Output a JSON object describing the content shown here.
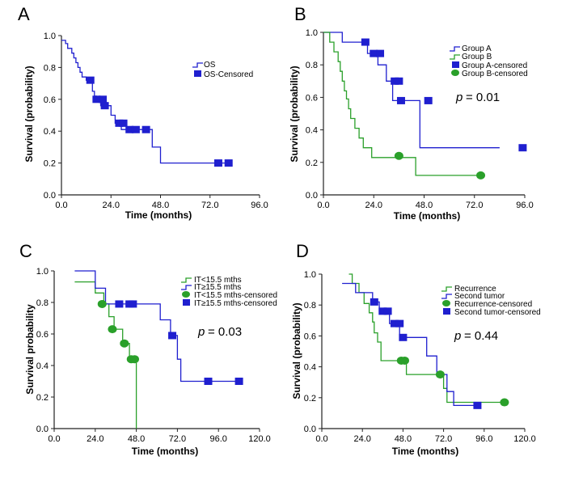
{
  "chart_data": [
    {
      "type": "line",
      "panel": "A",
      "xlabel": "Time (months)",
      "ylabel": "Survival (probability)",
      "xlim": [
        0,
        96
      ],
      "ylim": [
        0,
        1
      ],
      "xticks": [
        "0.0",
        "24.0",
        "48.0",
        "72.0",
        "96.0"
      ],
      "yticks": [
        "0.0",
        "0.2",
        "0.4",
        "0.6",
        "0.8",
        "1.0"
      ],
      "pvalue": "",
      "legend": [
        "OS",
        "OS-Censored"
      ],
      "series": [
        {
          "color": "#1f1fcf",
          "steps": [
            [
              0,
              0.97
            ],
            [
              2,
              0.95
            ],
            [
              3,
              0.92
            ],
            [
              5,
              0.89
            ],
            [
              6,
              0.86
            ],
            [
              7,
              0.83
            ],
            [
              8,
              0.8
            ],
            [
              9,
              0.77
            ],
            [
              10,
              0.74
            ],
            [
              12,
              0.72
            ],
            [
              15,
              0.65
            ],
            [
              16,
              0.62
            ],
            [
              17,
              0.6
            ],
            [
              19,
              0.56
            ],
            [
              24,
              0.5
            ],
            [
              26,
              0.45
            ],
            [
              29,
              0.41
            ],
            [
              44,
              0.3
            ],
            [
              48,
              0.2
            ],
            [
              82,
              0.2
            ]
          ],
          "censored": [
            [
              14,
              0.72
            ],
            [
              17,
              0.6
            ],
            [
              20,
              0.6
            ],
            [
              21,
              0.56
            ],
            [
              28,
              0.45
            ],
            [
              30,
              0.45
            ],
            [
              33,
              0.41
            ],
            [
              36,
              0.41
            ],
            [
              41,
              0.41
            ],
            [
              76,
              0.2
            ],
            [
              81,
              0.2
            ]
          ],
          "marker": "square",
          "marker_color": "#1f1fcf"
        }
      ]
    },
    {
      "type": "line",
      "panel": "B",
      "xlabel": "Time (months)",
      "ylabel": "Survival (probability)",
      "xlim": [
        0,
        96
      ],
      "ylim": [
        0,
        1
      ],
      "xticks": [
        "0.0",
        "24.0",
        "48.0",
        "72.0",
        "96.0"
      ],
      "yticks": [
        "0.0",
        "0.2",
        "0.4",
        "0.6",
        "0.8",
        "1.0"
      ],
      "pvalue": "= 0.01",
      "legend": [
        "Group A",
        "Group B",
        "Group A-censored",
        "Group B-censored"
      ],
      "series": [
        {
          "color": "#1f1fcf",
          "steps": [
            [
              0,
              1.0
            ],
            [
              9,
              0.94
            ],
            [
              21,
              0.87
            ],
            [
              26,
              0.8
            ],
            [
              30,
              0.7
            ],
            [
              33,
              0.58
            ],
            [
              46,
              0.29
            ],
            [
              84,
              0.29
            ]
          ],
          "censored": [
            [
              20,
              0.94
            ],
            [
              24,
              0.87
            ],
            [
              27,
              0.87
            ],
            [
              34,
              0.7
            ],
            [
              36,
              0.7
            ],
            [
              37,
              0.58
            ],
            [
              50,
              0.58
            ],
            [
              95,
              0.29
            ]
          ],
          "marker": "square",
          "marker_color": "#1f1fcf"
        },
        {
          "color": "#2aa02a",
          "steps": [
            [
              0,
              1.0
            ],
            [
              3,
              0.94
            ],
            [
              5,
              0.88
            ],
            [
              7,
              0.82
            ],
            [
              8,
              0.76
            ],
            [
              9,
              0.7
            ],
            [
              10,
              0.64
            ],
            [
              11,
              0.59
            ],
            [
              12,
              0.53
            ],
            [
              13,
              0.47
            ],
            [
              15,
              0.41
            ],
            [
              17,
              0.35
            ],
            [
              19,
              0.29
            ],
            [
              23,
              0.23
            ],
            [
              44,
              0.12
            ],
            [
              75,
              0.12
            ]
          ],
          "censored": [
            [
              36,
              0.24
            ],
            [
              75,
              0.12
            ]
          ],
          "marker": "circle",
          "marker_color": "#2aa02a"
        }
      ]
    },
    {
      "type": "line",
      "panel": "C",
      "xlabel": "Time (months)",
      "ylabel": "Survival probability",
      "xlim": [
        0,
        120
      ],
      "ylim": [
        0,
        1
      ],
      "xticks": [
        "0.0",
        "24.0",
        "48.0",
        "72.0",
        "96.0",
        "120.0"
      ],
      "yticks": [
        "0.0",
        "0.2",
        "0.4",
        "0.6",
        "0.8",
        "1.0"
      ],
      "pvalue": "= 0.03",
      "legend": [
        "IT<15.5 mths",
        "IT≥15.5 mths",
        "IT<15.5 mths-censored",
        "IT≥15.5 mths-censored"
      ],
      "series": [
        {
          "color": "#2aa02a",
          "steps": [
            [
              12,
              0.93
            ],
            [
              24,
              0.86
            ],
            [
              29,
              0.79
            ],
            [
              32,
              0.71
            ],
            [
              35,
              0.63
            ],
            [
              40,
              0.54
            ],
            [
              44,
              0.44
            ],
            [
              48,
              0.0
            ]
          ],
          "censored": [
            [
              28,
              0.79
            ],
            [
              34,
              0.63
            ],
            [
              41,
              0.54
            ],
            [
              45,
              0.44
            ],
            [
              47,
              0.44
            ]
          ],
          "marker": "circle",
          "marker_color": "#2aa02a"
        },
        {
          "color": "#1f1fcf",
          "steps": [
            [
              12,
              1.0
            ],
            [
              24,
              0.89
            ],
            [
              30,
              0.79
            ],
            [
              62,
              0.69
            ],
            [
              68,
              0.59
            ],
            [
              72,
              0.44
            ],
            [
              74,
              0.3
            ],
            [
              108,
              0.3
            ]
          ],
          "censored": [
            [
              38,
              0.79
            ],
            [
              44,
              0.79
            ],
            [
              46,
              0.79
            ],
            [
              69,
              0.59
            ],
            [
              90,
              0.3
            ],
            [
              108,
              0.3
            ]
          ],
          "marker": "square",
          "marker_color": "#1f1fcf"
        }
      ]
    },
    {
      "type": "line",
      "panel": "D",
      "xlabel": "Time (months)",
      "ylabel": "Survival (probability)",
      "xlim": [
        0,
        120
      ],
      "ylim": [
        0,
        1
      ],
      "xticks": [
        "0.0",
        "24.0",
        "48.0",
        "72.0",
        "96.0",
        "120.0"
      ],
      "yticks": [
        "0.0",
        "0.2",
        "0.4",
        "0.6",
        "0.8",
        "1.0"
      ],
      "pvalue": "= 0.44",
      "legend": [
        "Recurrence",
        "Second tumor",
        "Recurrence-censored",
        "Second tumor-censored"
      ],
      "series": [
        {
          "color": "#2aa02a",
          "steps": [
            [
              16,
              1.0
            ],
            [
              18,
              0.94
            ],
            [
              22,
              0.88
            ],
            [
              25,
              0.81
            ],
            [
              28,
              0.75
            ],
            [
              30,
              0.69
            ],
            [
              31,
              0.62
            ],
            [
              33,
              0.56
            ],
            [
              35,
              0.44
            ],
            [
              50,
              0.35
            ],
            [
              72,
              0.26
            ],
            [
              74,
              0.17
            ],
            [
              108,
              0.17
            ]
          ],
          "censored": [
            [
              47,
              0.44
            ],
            [
              49,
              0.44
            ],
            [
              70,
              0.35
            ],
            [
              108,
              0.17
            ]
          ],
          "marker": "circle",
          "marker_color": "#2aa02a"
        },
        {
          "color": "#1f1fcf",
          "steps": [
            [
              12,
              0.94
            ],
            [
              20,
              0.88
            ],
            [
              30,
              0.82
            ],
            [
              34,
              0.76
            ],
            [
              40,
              0.68
            ],
            [
              46,
              0.59
            ],
            [
              62,
              0.47
            ],
            [
              68,
              0.35
            ],
            [
              74,
              0.24
            ],
            [
              78,
              0.15
            ],
            [
              92,
              0.15
            ]
          ],
          "censored": [
            [
              31,
              0.82
            ],
            [
              36,
              0.76
            ],
            [
              39,
              0.76
            ],
            [
              43,
              0.68
            ],
            [
              46,
              0.68
            ],
            [
              48,
              0.59
            ],
            [
              92,
              0.15
            ]
          ],
          "marker": "square",
          "marker_color": "#1f1fcf"
        }
      ]
    }
  ]
}
